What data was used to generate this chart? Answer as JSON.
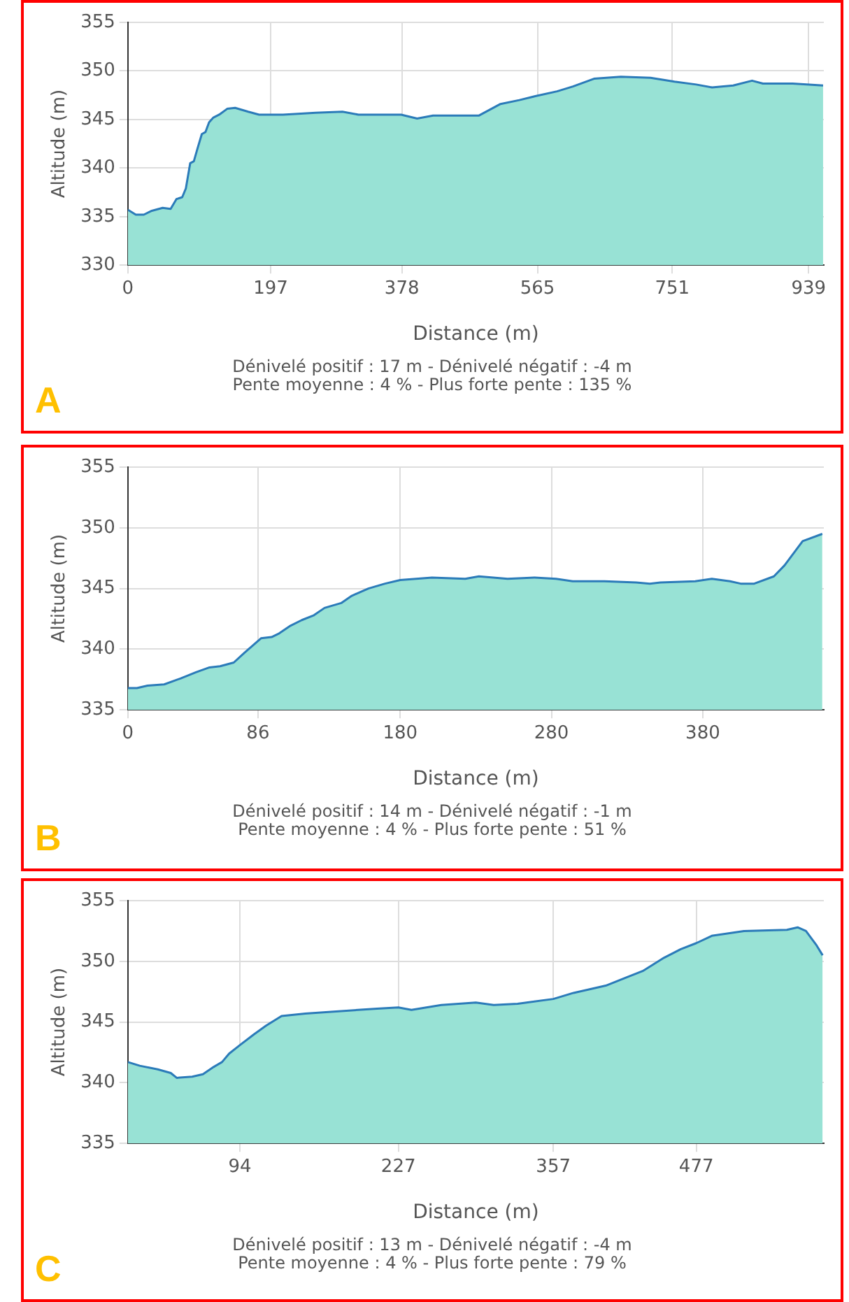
{
  "chart_data": [
    {
      "type": "area",
      "title": "A",
      "xlabel": "Distance (m)",
      "ylabel": "Altitude (m)",
      "annotations": [
        "Dénivelé positif : 17 m - Dénivelé négatif : -4 m",
        "Pente moyenne : 4 % - Plus forte pente : 135 %"
      ],
      "x": [
        0,
        11,
        22,
        33,
        48,
        59,
        67,
        75,
        80,
        86,
        91,
        96,
        102,
        107,
        112,
        118,
        126,
        137,
        148,
        166,
        181,
        214,
        259,
        296,
        318,
        377,
        399,
        421,
        484,
        514,
        540,
        562,
        592,
        614,
        643,
        680,
        721,
        754,
        784,
        806,
        835,
        861,
        876,
        917,
        959
      ],
      "series": [
        {
          "color": "#98e2d5",
          "values": [
            335.7,
            335.2,
            335.2,
            335.6,
            335.9,
            335.8,
            336.8,
            337,
            337.9,
            340.5,
            340.7,
            342,
            343.5,
            343.7,
            344.7,
            345.2,
            345.5,
            346.1,
            346.2,
            345.8,
            345.5,
            345.5,
            345.7,
            345.8,
            345.5,
            345.5,
            345.1,
            345.4,
            345.4,
            346.6,
            347,
            347.4,
            347.9,
            348.4,
            349.2,
            349.4,
            349.3,
            348.9,
            348.6,
            348.3,
            348.5,
            349,
            348.7,
            348.7,
            348.5
          ]
        }
      ],
      "xlim": [
        0,
        960
      ],
      "ylim": [
        330,
        355
      ],
      "xticks": [
        0,
        197,
        378,
        565,
        751,
        939
      ],
      "yticks": [
        330,
        335,
        340,
        345,
        350,
        355
      ],
      "grid": true,
      "legend": false
    },
    {
      "type": "area",
      "title": "B",
      "xlabel": "Distance (m)",
      "ylabel": "Altitude (m)",
      "annotations": [
        "Dénivelé positif : 14 m - Dénivelé négatif : -1 m",
        "Pente moyenne : 4 % - Plus forte pente : 51 %"
      ],
      "x": [
        0,
        6,
        13,
        24,
        35,
        45,
        54,
        61,
        70,
        77,
        88,
        95,
        100,
        107,
        115,
        123,
        130,
        141,
        148,
        159,
        170,
        180,
        201,
        223,
        232,
        251,
        269,
        283,
        294,
        315,
        336,
        345,
        352,
        375,
        386,
        398,
        405,
        414,
        427,
        434,
        446,
        459
      ],
      "series": [
        {
          "color": "#98e2d5",
          "values": [
            336.8,
            336.8,
            337,
            337.1,
            337.6,
            338.1,
            338.5,
            338.6,
            338.9,
            339.7,
            340.9,
            341,
            341.3,
            341.9,
            342.4,
            342.8,
            343.4,
            343.8,
            344.4,
            345,
            345.4,
            345.7,
            345.9,
            345.8,
            346,
            345.8,
            345.9,
            345.8,
            345.6,
            345.6,
            345.5,
            345.4,
            345.5,
            345.6,
            345.8,
            345.6,
            345.4,
            345.4,
            346,
            346.9,
            348.9,
            349.5
          ]
        }
      ],
      "xlim": [
        0,
        460
      ],
      "ylim": [
        335,
        355
      ],
      "xticks": [
        0,
        86,
        180,
        280,
        380
      ],
      "yticks": [
        335,
        340,
        345,
        350,
        355
      ],
      "grid": true,
      "legend": false
    },
    {
      "type": "area",
      "title": "C",
      "xlabel": "Distance (m)",
      "ylabel": "Altitude (m)",
      "annotations": [
        "Dénivelé positif : 13 m - Dénivelé négatif : -4 m",
        "Pente moyenne : 4 % - Plus forte pente : 79 %"
      ],
      "x": [
        0,
        10,
        25,
        36,
        41,
        54,
        63,
        72,
        79,
        85,
        94,
        106,
        116,
        129,
        149,
        179,
        209,
        227,
        238,
        263,
        292,
        307,
        327,
        357,
        374,
        401,
        419,
        432,
        450,
        464,
        477,
        490,
        517,
        553,
        562,
        569,
        578,
        583
      ],
      "series": [
        {
          "color": "#98e2d5",
          "values": [
            341.7,
            341.4,
            341.1,
            340.8,
            340.4,
            340.5,
            340.7,
            341.3,
            341.7,
            342.4,
            343.1,
            344,
            344.7,
            345.5,
            345.7,
            345.9,
            346.1,
            346.2,
            346,
            346.4,
            346.6,
            346.4,
            346.5,
            346.9,
            347.4,
            348,
            348.7,
            349.2,
            350.3,
            351,
            351.5,
            352.1,
            352.5,
            352.6,
            352.8,
            352.5,
            351.3,
            350.5
          ]
        }
      ],
      "xlim": [
        0,
        584
      ],
      "ylim": [
        335,
        355
      ],
      "xticks": [
        94,
        227,
        357,
        477
      ],
      "yticks": [
        335,
        340,
        345,
        350,
        355
      ],
      "grid": true,
      "legend": false
    }
  ]
}
